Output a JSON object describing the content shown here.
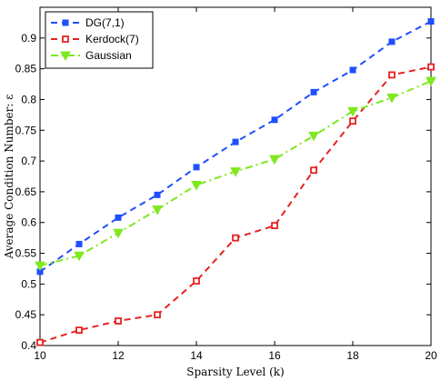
{
  "chart_data": {
    "type": "line",
    "xlabel": "Sparsity Level (k)",
    "ylabel": "Average Condition Number: ε",
    "xlim": [
      10,
      20
    ],
    "ylim": [
      0.4,
      0.95
    ],
    "xticks": [
      10,
      12,
      14,
      16,
      18,
      20
    ],
    "yticks": [
      0.4,
      0.45,
      0.5,
      0.55,
      0.6,
      0.65,
      0.7,
      0.75,
      0.8,
      0.85,
      0.9
    ],
    "grid": false,
    "legend_position": "top-left",
    "x": [
      10,
      11,
      12,
      13,
      14,
      15,
      16,
      17,
      18,
      19,
      20
    ],
    "series": [
      {
        "name": "DG(7,1)",
        "color": "#1f4fff",
        "marker": "square-filled",
        "line_style": "dashed",
        "values": [
          0.52,
          0.565,
          0.608,
          0.645,
          0.69,
          0.731,
          0.767,
          0.812,
          0.848,
          0.894,
          0.927
        ]
      },
      {
        "name": "Kerdock(7)",
        "color": "#e52222",
        "marker": "square-open",
        "line_style": "dashed",
        "values": [
          0.405,
          0.425,
          0.44,
          0.45,
          0.505,
          0.575,
          0.595,
          0.685,
          0.765,
          0.84,
          0.853
        ]
      },
      {
        "name": "Gaussian",
        "color": "#7fe81f",
        "marker": "triangle-down",
        "line_style": "dash-dot",
        "values": [
          0.53,
          0.546,
          0.583,
          0.621,
          0.661,
          0.683,
          0.703,
          0.741,
          0.781,
          0.803,
          0.83
        ]
      }
    ]
  }
}
